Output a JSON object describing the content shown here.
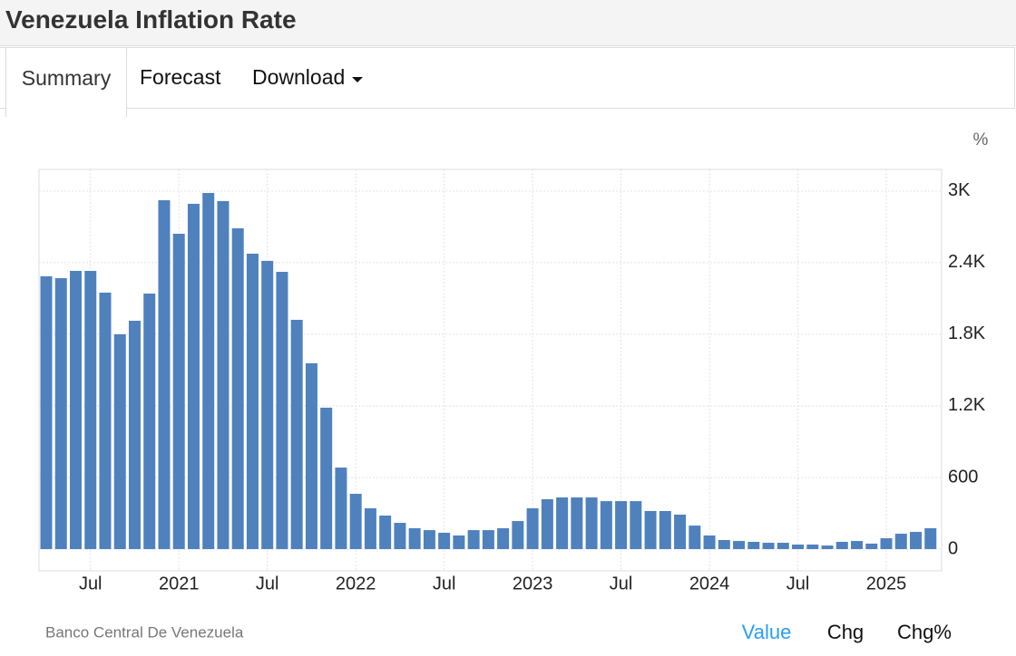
{
  "header": {
    "title": "Venezuela Inflation Rate"
  },
  "tabs": [
    "Summary",
    "Forecast",
    "Download"
  ],
  "chart_data": {
    "type": "bar",
    "unit": "%",
    "color": "#4f81bd",
    "grid": true,
    "categories": [
      null,
      null,
      null,
      "Jul",
      null,
      null,
      null,
      null,
      null,
      "2021",
      null,
      null,
      null,
      null,
      null,
      "Jul",
      null,
      null,
      null,
      null,
      null,
      "2022",
      null,
      null,
      null,
      null,
      null,
      "Jul",
      null,
      null,
      null,
      null,
      null,
      "2023",
      null,
      null,
      null,
      null,
      null,
      "Jul",
      null,
      null,
      null,
      null,
      null,
      "2024",
      null,
      null,
      null,
      null,
      null,
      "Jul",
      null,
      null,
      null,
      null,
      null,
      "2025",
      null,
      null,
      null
    ],
    "values": [
      2286,
      2270,
      2331,
      2331,
      2149,
      1800,
      1913,
      2141,
      2923,
      2642,
      2893,
      2984,
      2916,
      2688,
      2475,
      2415,
      2323,
      1921,
      1557,
      1185,
      683,
      463,
      342,
      281,
      220,
      175,
      159,
      137,
      114,
      159,
      159,
      175,
      235,
      342,
      418,
      433,
      433,
      433,
      402,
      402,
      402,
      319,
      319,
      289,
      197,
      114,
      76,
      68,
      61,
      53,
      53,
      38,
      38,
      30,
      61,
      68,
      46,
      91,
      129,
      144,
      175
    ],
    "ylim": [
      -182,
      3181
    ],
    "yticks": [
      0,
      600,
      {
        "value": 1200,
        "label": "1.2K"
      },
      {
        "value": 1800,
        "label": "1.8K"
      },
      {
        "value": 2400,
        "label": "2.4K"
      },
      {
        "value": 3000,
        "label": "3K"
      }
    ],
    "source": "Banco Central De Venezuela"
  },
  "footer": {
    "options": [
      "Value",
      "Chg",
      "Chg%"
    ]
  }
}
